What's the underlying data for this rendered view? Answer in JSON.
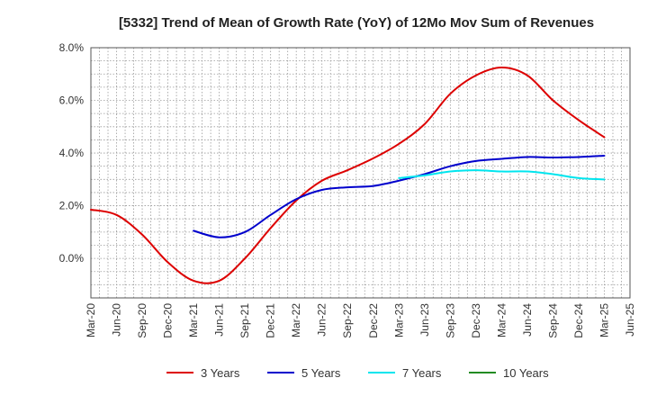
{
  "chart_data": {
    "type": "line",
    "title": "[5332]  Trend of Mean of Growth Rate (YoY) of 12Mo Mov Sum of Revenues",
    "xlabel": "",
    "ylabel": "",
    "ylim": [
      -1.5,
      8.0
    ],
    "yticks": [
      0.0,
      2.0,
      4.0,
      6.0,
      8.0
    ],
    "ytick_labels": [
      "0.0%",
      "2.0%",
      "4.0%",
      "6.0%",
      "8.0%"
    ],
    "grid": true,
    "legend_position": "bottom",
    "categories": [
      "Mar-20",
      "Jun-20",
      "Sep-20",
      "Dec-20",
      "Mar-21",
      "Jun-21",
      "Sep-21",
      "Dec-21",
      "Mar-22",
      "Jun-22",
      "Sep-22",
      "Dec-22",
      "Mar-23",
      "Jun-23",
      "Sep-23",
      "Dec-23",
      "Mar-24",
      "Jun-24",
      "Sep-24",
      "Dec-24",
      "Mar-25",
      "Jun-25"
    ],
    "series": [
      {
        "name": "3 Years",
        "color": "#dd0000",
        "values": [
          1.85,
          1.65,
          0.9,
          -0.15,
          -0.85,
          -0.85,
          0.0,
          1.15,
          2.2,
          2.95,
          3.35,
          3.8,
          4.35,
          5.1,
          6.25,
          6.95,
          7.25,
          6.95,
          6.0,
          5.25,
          4.6,
          null
        ]
      },
      {
        "name": "5 Years",
        "color": "#0000cc",
        "values": [
          null,
          null,
          null,
          null,
          1.05,
          0.8,
          1.0,
          1.65,
          2.25,
          2.6,
          2.7,
          2.75,
          2.95,
          3.2,
          3.5,
          3.7,
          3.78,
          3.85,
          3.83,
          3.85,
          3.9,
          null
        ]
      },
      {
        "name": "7 Years",
        "color": "#00e5ee",
        "values": [
          null,
          null,
          null,
          null,
          null,
          null,
          null,
          null,
          null,
          null,
          null,
          null,
          3.05,
          3.15,
          3.3,
          3.35,
          3.3,
          3.3,
          3.2,
          3.05,
          3.0,
          null
        ]
      },
      {
        "name": "10 Years",
        "color": "#228b22",
        "values": [
          null,
          null,
          null,
          null,
          null,
          null,
          null,
          null,
          null,
          null,
          null,
          null,
          null,
          null,
          null,
          null,
          null,
          null,
          null,
          null,
          null,
          null
        ]
      }
    ]
  }
}
